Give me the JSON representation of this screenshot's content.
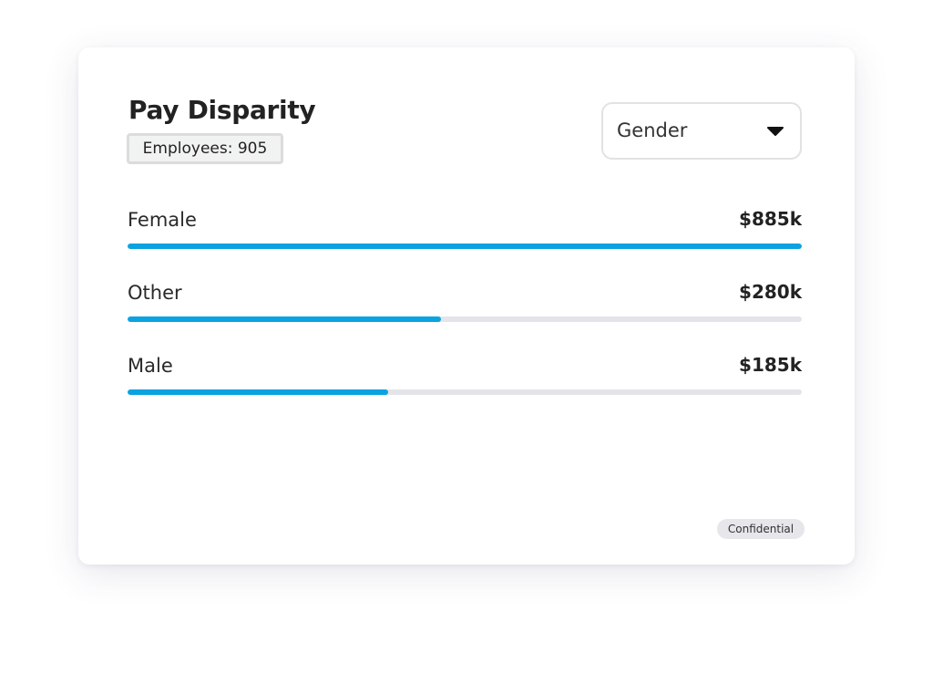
{
  "card": {
    "title": "Pay Disparity",
    "employees": "Employees: 905",
    "dropdown": "Gender",
    "badge": "Confidential"
  },
  "fill_range": [
    0,
    100
  ],
  "rows": [
    {
      "label": "Female",
      "amount": "$885k",
      "fill": 100
    },
    {
      "label": "Other",
      "amount": "$280k",
      "fill": 46.5
    },
    {
      "label": "Male",
      "amount": "$185k",
      "fill": 38.6
    }
  ]
}
